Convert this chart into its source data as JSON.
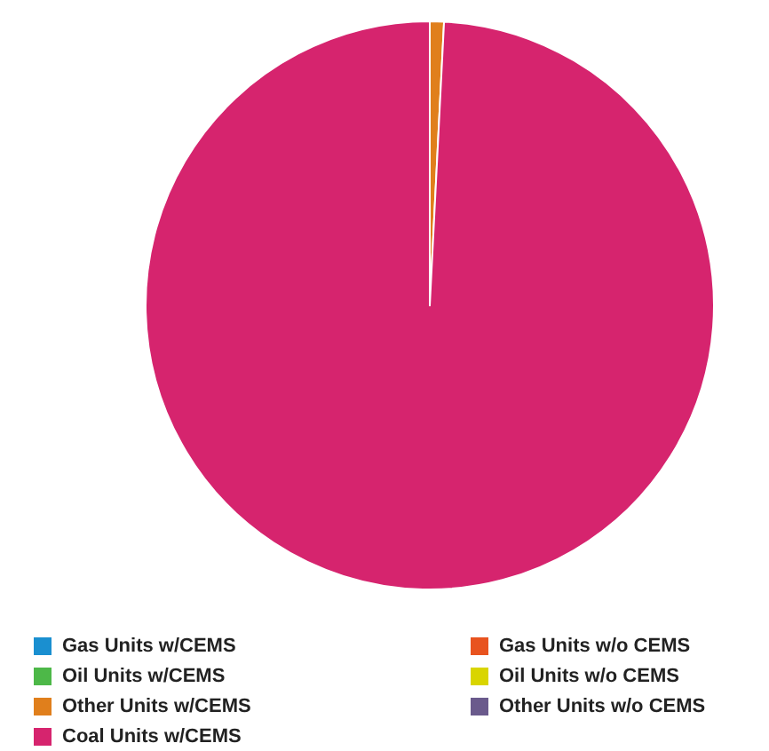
{
  "chart_data": {
    "type": "pie",
    "categories": [
      "Gas Units w/CEMS",
      "Oil Units w/CEMS",
      "Other Units w/CEMS",
      "Coal Units w/CEMS",
      "Gas Units w/o CEMS",
      "Oil Units w/o CEMS",
      "Other Units w/o CEMS"
    ],
    "values": [
      0,
      0,
      0.8,
      99.2,
      0,
      0,
      0
    ],
    "colors": [
      "#1a8fd0",
      "#4db848",
      "#e07f1c",
      "#d6246e",
      "#e8531f",
      "#d9d500",
      "#6a5a8c"
    ],
    "legend": "bottom"
  }
}
